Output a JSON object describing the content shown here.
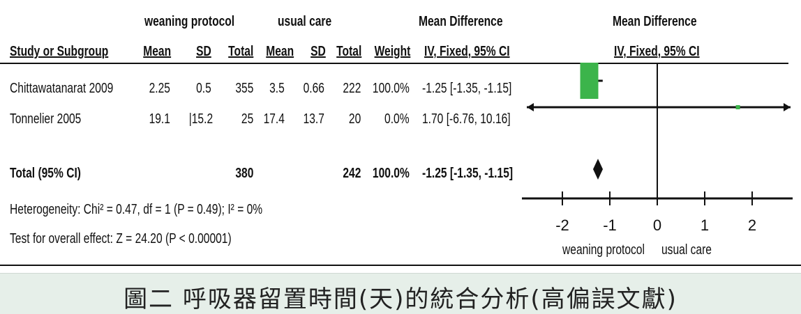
{
  "header": {
    "group_exp": "weaning protocol",
    "group_ctl": "usual care",
    "effect_group": "Mean Difference",
    "plot_group": "Mean Difference",
    "col_study": "Study or Subgroup",
    "col_mean": "Mean",
    "col_sd": "SD",
    "col_total": "Total",
    "col_mean2": "Mean",
    "col_sd2": "SD",
    "col_total2": "Total",
    "col_weight": "Weight",
    "col_md": "IV, Fixed, 95% CI",
    "plot_md": "IV, Fixed, 95% CI"
  },
  "rows": [
    {
      "study": "Chittawatanarat 2009",
      "mean1": "2.25",
      "sd1": "0.5",
      "total1": "355",
      "mean2": "3.5",
      "sd2": "0.66",
      "total2": "222",
      "weight": "100.0%",
      "md": "-1.25 [-1.35, -1.15]"
    },
    {
      "study": "Tonnelier 2005",
      "mean1": "19.1",
      "sd1": "|15.2",
      "total1": "25",
      "mean2": "17.4",
      "sd2": "13.7",
      "total2": "20",
      "weight": "0.0%",
      "md": "1.70 [-6.76, 10.16]"
    }
  ],
  "total": {
    "label": "Total (95% CI)",
    "total1": "380",
    "total2": "242",
    "weight": "100.0%",
    "md": "-1.25 [-1.35, -1.15]"
  },
  "footer": {
    "heterogeneity": "Heterogeneity: Chi² = 0.47, df = 1 (P = 0.49); I² = 0%",
    "overall": "Test for overall effect: Z = 24.20 (P < 0.00001)"
  },
  "axis": {
    "favours_left": "weaning protocol",
    "favours_right": "usual care"
  },
  "caption": "圖二 呼吸器留置時間(天)的統合分析(高偏誤文獻)",
  "chart_data": {
    "type": "forest",
    "xlim": [
      -3,
      3
    ],
    "ticks": [
      -2,
      -1,
      0,
      1,
      2
    ],
    "tick_labels": [
      "-2",
      "-1",
      "0",
      "1",
      "2"
    ],
    "studies": [
      {
        "name": "Chittawatanarat 2009",
        "md": -1.25,
        "ci": [
          -1.35,
          -1.15
        ],
        "weight": 100.0
      },
      {
        "name": "Tonnelier 2005",
        "md": 1.7,
        "ci": [
          -6.76,
          10.16
        ],
        "weight": 0.0
      }
    ],
    "pooled": {
      "md": -1.25,
      "ci": [
        -1.35,
        -1.15
      ]
    },
    "colors": {
      "box": "#3cb44b",
      "line": "#111111"
    }
  }
}
